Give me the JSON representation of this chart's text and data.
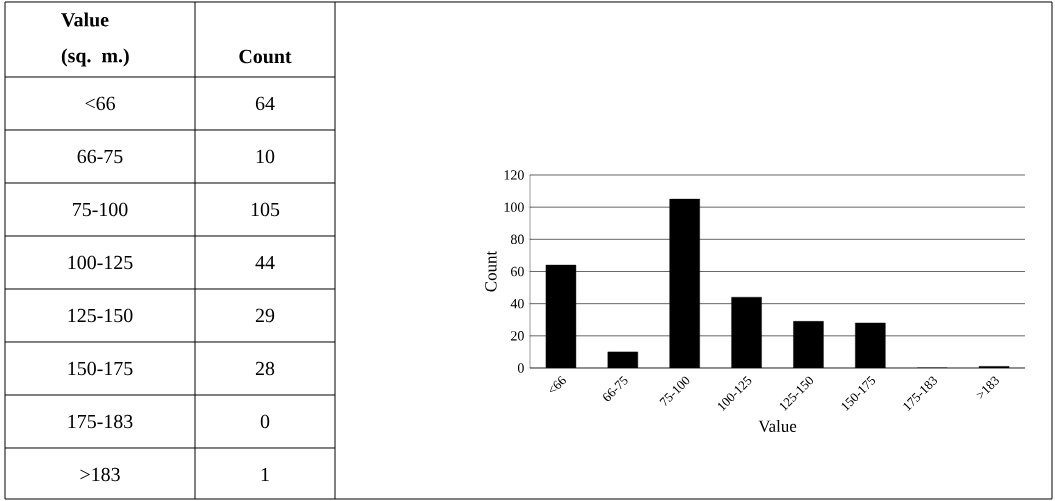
{
  "chart_data": [
    {
      "type": "other",
      "annotations": [
        "Value (sq. m.)",
        "Count"
      ],
      "categories": [
        "<66",
        "66-75",
        "75-100",
        "100-125",
        "125-150",
        "150-175",
        "175-183",
        ">183"
      ],
      "value_labels": [
        "64",
        "10",
        "105",
        "44",
        "29",
        "28",
        "0",
        "1"
      ]
    },
    {
      "type": "bar",
      "categories": [
        "<66",
        "66-75",
        "75-100",
        "100-125",
        "125-150",
        "150-175",
        "175-183",
        ">183"
      ],
      "values": [
        64,
        10,
        105,
        44,
        29,
        28,
        0,
        1
      ],
      "color": "#000000",
      "ylim": [
        0,
        120
      ],
      "yticks": [
        0,
        20,
        40,
        60,
        80,
        100,
        120
      ],
      "grid": "y",
      "xlabel": "Value",
      "ylabel": "Count"
    }
  ]
}
